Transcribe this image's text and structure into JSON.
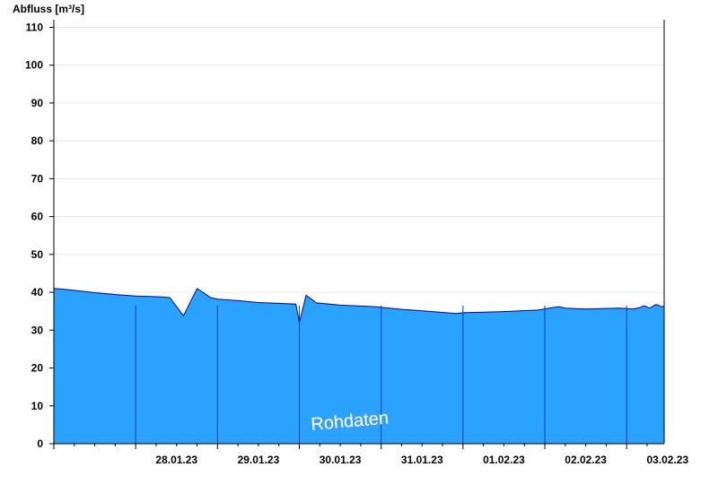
{
  "chart_data": {
    "type": "area",
    "ylabel": "Abfluss [m³/s]",
    "ylim": [
      0,
      112
    ],
    "yticks": [
      0,
      10,
      20,
      30,
      40,
      50,
      60,
      70,
      80,
      90,
      100,
      110
    ],
    "grid": true,
    "watermark": "Rohdaten",
    "x_range": [
      "27.01.23 00:00",
      "03.02.23 11:00"
    ],
    "day_boundaries": [
      "28.01.23 00:00",
      "29.01.23 00:00",
      "30.01.23 00:00",
      "31.01.23 00:00",
      "01.02.23 00:00",
      "02.02.23 00:00",
      "03.02.23 00:00"
    ],
    "x_tick_labels": [
      {
        "label": "28.01.23",
        "at": "28.01.23 12:00"
      },
      {
        "label": "29.01.23",
        "at": "29.01.23 12:00"
      },
      {
        "label": "30.01.23",
        "at": "30.01.23 12:00"
      },
      {
        "label": "31.01.23",
        "at": "31.01.23 12:00"
      },
      {
        "label": "01.02.23",
        "at": "01.02.23 12:00"
      },
      {
        "label": "02.02.23",
        "at": "02.02.23 12:00"
      },
      {
        "label": "03.02.23",
        "at": "03.02.23 12:00"
      }
    ],
    "colors": {
      "fill": "#29a3ff",
      "line": "#00008b",
      "day_line": "#0044aa",
      "grid": "#e6e6e6",
      "axis": "#000000"
    },
    "series": [
      {
        "points": [
          [
            "27.01.23 00:00",
            41.0
          ],
          [
            "27.01.23 03:00",
            40.8
          ],
          [
            "27.01.23 08:00",
            40.3
          ],
          [
            "27.01.23 12:00",
            39.9
          ],
          [
            "27.01.23 18:00",
            39.4
          ],
          [
            "28.01.23 00:00",
            39.0
          ],
          [
            "28.01.23 07:00",
            38.8
          ],
          [
            "28.01.23 10:00",
            38.6
          ],
          [
            "28.01.23 14:00",
            33.8
          ],
          [
            "28.01.23 18:00",
            41.0
          ],
          [
            "28.01.23 22:00",
            38.6
          ],
          [
            "29.01.23 00:00",
            38.2
          ],
          [
            "29.01.23 06:00",
            37.8
          ],
          [
            "29.01.23 12:00",
            37.3
          ],
          [
            "29.01.23 20:00",
            37.0
          ],
          [
            "29.01.23 23:00",
            36.9
          ],
          [
            "30.01.23 00:00",
            32.0
          ],
          [
            "30.01.23 02:00",
            39.2
          ],
          [
            "30.01.23 05:00",
            37.2
          ],
          [
            "30.01.23 12:00",
            36.6
          ],
          [
            "30.01.23 22:00",
            36.2
          ],
          [
            "31.01.23 06:00",
            35.5
          ],
          [
            "31.01.23 12:00",
            35.1
          ],
          [
            "31.01.23 22:00",
            34.4
          ],
          [
            "01.02.23 00:00",
            34.6
          ],
          [
            "01.02.23 12:00",
            34.9
          ],
          [
            "01.02.23 22:00",
            35.3
          ],
          [
            "02.02.23 04:00",
            36.2
          ],
          [
            "02.02.23 06:00",
            35.8
          ],
          [
            "02.02.23 12:00",
            35.6
          ],
          [
            "02.02.23 22:00",
            35.8
          ],
          [
            "03.02.23 02:00",
            35.6
          ],
          [
            "03.02.23 04:00",
            36.0
          ]
        ]
      }
    ]
  }
}
